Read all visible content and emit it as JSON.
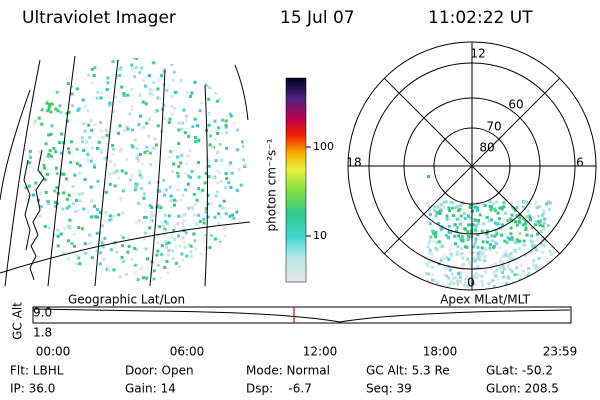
{
  "header": {
    "instrument": "Ultraviolet Imager",
    "date": "15 Jul 07",
    "time": "11:02:22 UT"
  },
  "colorbar": {
    "label": "photon cm⁻²s⁻¹",
    "ticks": [
      "100",
      "10"
    ]
  },
  "left_panel": {
    "label": "Geographic Lat/Lon"
  },
  "right_panel": {
    "label": "Apex MLat/MLT",
    "mlt_labels": [
      "12",
      "18",
      "6",
      "0"
    ],
    "lat_labels": [
      "60",
      "70",
      "80"
    ]
  },
  "timeline": {
    "axis_label": "GC Alt",
    "ticks": [
      "9.0",
      "1.8"
    ],
    "time_labels": [
      "00:00",
      "06:00",
      "12:00",
      "18:00",
      "23:59"
    ]
  },
  "footer": {
    "rows": [
      [
        "Flt: LBHL",
        "Door: Open",
        "Mode: Normal",
        "GC Alt: 5.3 Re",
        "GLat: -50.2"
      ],
      [
        "IP: 36.0",
        "Gain: 14",
        "Dsp:    -6.7",
        "Seq: 39",
        "GLon: 208.5"
      ]
    ]
  }
}
